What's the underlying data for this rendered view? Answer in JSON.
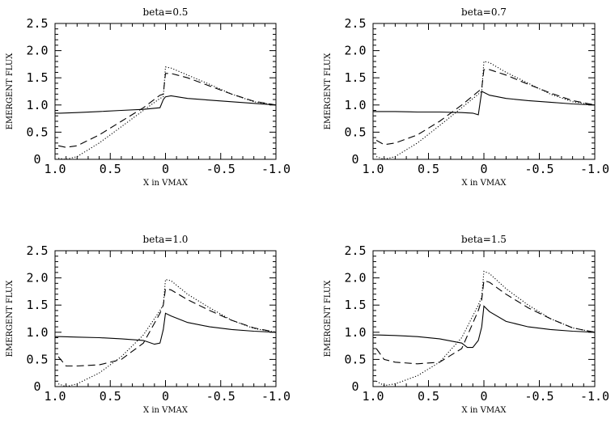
{
  "chart_data": [
    {
      "type": "line",
      "title": "beta=0.5",
      "xlabel": "X in VMAX",
      "ylabel": "EMERGENT FLUX",
      "xlim": [
        1.0,
        -1.0
      ],
      "ylim": [
        0,
        2.5
      ],
      "xticks": [
        "1.0",
        "0.5",
        "0",
        "-0.5",
        "-1.0"
      ],
      "yticks": [
        "0",
        "0.5",
        "1.0",
        "1.5",
        "2.0",
        "2.5"
      ],
      "grid": false,
      "series": [
        {
          "style": "solid",
          "x": [
            1.0,
            0.95,
            0.8,
            0.6,
            0.4,
            0.2,
            0.05,
            0.02,
            0.0,
            -0.05,
            -0.2,
            -0.4,
            -0.6,
            -0.8,
            -1.0
          ],
          "y": [
            0.85,
            0.85,
            0.86,
            0.88,
            0.9,
            0.92,
            0.95,
            1.1,
            1.15,
            1.17,
            1.12,
            1.09,
            1.06,
            1.03,
            1.0
          ]
        },
        {
          "style": "dashed",
          "x": [
            0.97,
            0.9,
            0.8,
            0.6,
            0.4,
            0.2,
            0.05,
            0.02,
            0.0,
            -0.05,
            -0.2,
            -0.4,
            -0.6,
            -0.8,
            -1.0
          ],
          "y": [
            0.25,
            0.22,
            0.25,
            0.45,
            0.7,
            0.95,
            1.18,
            1.2,
            1.58,
            1.58,
            1.5,
            1.35,
            1.2,
            1.07,
            1.0
          ]
        },
        {
          "style": "dotted",
          "x": [
            0.97,
            0.9,
            0.8,
            0.6,
            0.4,
            0.2,
            0.05,
            0.02,
            0.0,
            -0.05,
            -0.2,
            -0.4,
            -0.6,
            -0.8,
            -1.0
          ],
          "y": [
            0.02,
            0.0,
            0.05,
            0.3,
            0.6,
            0.9,
            1.12,
            1.15,
            1.7,
            1.68,
            1.55,
            1.38,
            1.2,
            1.06,
            1.0
          ]
        }
      ]
    },
    {
      "type": "line",
      "title": "beta=0.7",
      "xlabel": "X in VMAX",
      "ylabel": "EMERGENT FLUX",
      "xlim": [
        1.0,
        -1.0
      ],
      "ylim": [
        0,
        2.5
      ],
      "xticks": [
        "1.0",
        "0.5",
        "0",
        "-0.5",
        "-1.0"
      ],
      "yticks": [
        "0",
        "0.5",
        "1.0",
        "1.5",
        "2.0",
        "2.5"
      ],
      "grid": false,
      "series": [
        {
          "style": "solid",
          "x": [
            1.0,
            0.95,
            0.8,
            0.6,
            0.4,
            0.2,
            0.1,
            0.05,
            0.02,
            0.0,
            -0.05,
            -0.2,
            -0.4,
            -0.6,
            -0.8,
            -1.0
          ],
          "y": [
            0.88,
            0.88,
            0.88,
            0.87,
            0.87,
            0.86,
            0.85,
            0.82,
            1.25,
            1.23,
            1.18,
            1.12,
            1.08,
            1.05,
            1.02,
            1.0
          ]
        },
        {
          "style": "dashed",
          "x": [
            0.97,
            0.9,
            0.8,
            0.6,
            0.4,
            0.2,
            0.05,
            0.02,
            0.0,
            -0.05,
            -0.2,
            -0.4,
            -0.6,
            -0.8,
            -1.0
          ],
          "y": [
            0.35,
            0.27,
            0.3,
            0.45,
            0.7,
            1.0,
            1.25,
            1.3,
            1.65,
            1.65,
            1.55,
            1.38,
            1.22,
            1.08,
            1.0
          ]
        },
        {
          "style": "dotted",
          "x": [
            0.97,
            0.9,
            0.8,
            0.6,
            0.4,
            0.2,
            0.05,
            0.02,
            0.0,
            -0.05,
            -0.2,
            -0.4,
            -0.6,
            -0.8,
            -1.0
          ],
          "y": [
            0.05,
            0.0,
            0.05,
            0.3,
            0.62,
            0.95,
            1.2,
            1.25,
            1.8,
            1.78,
            1.6,
            1.4,
            1.2,
            1.06,
            1.0
          ]
        }
      ]
    },
    {
      "type": "line",
      "title": "beta=1.0",
      "xlabel": "X in VMAX",
      "ylabel": "EMERGENT FLUX",
      "xlim": [
        1.0,
        -1.0
      ],
      "ylim": [
        0,
        2.5
      ],
      "xticks": [
        "1.0",
        "0.5",
        "0",
        "-0.5",
        "-1.0"
      ],
      "yticks": [
        "0",
        "0.5",
        "1.0",
        "1.5",
        "2.0",
        "2.5"
      ],
      "grid": false,
      "series": [
        {
          "style": "solid",
          "x": [
            1.0,
            0.95,
            0.8,
            0.6,
            0.4,
            0.2,
            0.1,
            0.05,
            0.02,
            0.0,
            -0.05,
            -0.2,
            -0.4,
            -0.6,
            -0.8,
            -1.0
          ],
          "y": [
            0.92,
            0.92,
            0.91,
            0.9,
            0.88,
            0.85,
            0.78,
            0.8,
            1.05,
            1.35,
            1.3,
            1.18,
            1.1,
            1.05,
            1.02,
            1.0
          ]
        },
        {
          "style": "dashed",
          "x": [
            0.97,
            0.9,
            0.8,
            0.6,
            0.4,
            0.2,
            0.05,
            0.02,
            0.0,
            -0.05,
            -0.2,
            -0.4,
            -0.6,
            -0.8,
            -1.0
          ],
          "y": [
            0.55,
            0.38,
            0.38,
            0.4,
            0.5,
            0.8,
            1.35,
            1.5,
            1.8,
            1.78,
            1.6,
            1.4,
            1.22,
            1.08,
            1.0
          ]
        },
        {
          "style": "dotted",
          "x": [
            0.97,
            0.9,
            0.8,
            0.6,
            0.4,
            0.2,
            0.05,
            0.02,
            0.0,
            -0.05,
            -0.2,
            -0.4,
            -0.6,
            -0.8,
            -1.0
          ],
          "y": [
            0.05,
            0.0,
            0.05,
            0.25,
            0.55,
            0.95,
            1.4,
            1.5,
            1.97,
            1.95,
            1.7,
            1.45,
            1.22,
            1.07,
            1.0
          ]
        }
      ]
    },
    {
      "type": "line",
      "title": "beta=1.5",
      "xlabel": "X in VMAX",
      "ylabel": "EMERGENT FLUX",
      "xlim": [
        1.0,
        -1.0
      ],
      "ylim": [
        0,
        2.5
      ],
      "xticks": [
        "1.0",
        "0.5",
        "0",
        "-0.5",
        "-1.0"
      ],
      "yticks": [
        "0",
        "0.5",
        "1.0",
        "1.5",
        "2.0",
        "2.5"
      ],
      "grid": false,
      "series": [
        {
          "style": "solid",
          "x": [
            1.0,
            0.95,
            0.8,
            0.6,
            0.4,
            0.2,
            0.15,
            0.1,
            0.05,
            0.02,
            0.0,
            -0.05,
            -0.2,
            -0.4,
            -0.6,
            -0.8,
            -1.0
          ],
          "y": [
            0.95,
            0.95,
            0.94,
            0.92,
            0.88,
            0.8,
            0.72,
            0.72,
            0.85,
            1.1,
            1.48,
            1.38,
            1.2,
            1.1,
            1.05,
            1.02,
            1.0
          ]
        },
        {
          "style": "dashed",
          "x": [
            0.97,
            0.9,
            0.8,
            0.6,
            0.4,
            0.2,
            0.05,
            0.02,
            0.0,
            -0.05,
            -0.2,
            -0.4,
            -0.6,
            -0.8,
            -1.0
          ],
          "y": [
            0.7,
            0.5,
            0.45,
            0.42,
            0.45,
            0.7,
            1.4,
            1.6,
            1.95,
            1.92,
            1.7,
            1.45,
            1.25,
            1.08,
            1.0
          ]
        },
        {
          "style": "dotted",
          "x": [
            0.97,
            0.9,
            0.8,
            0.6,
            0.4,
            0.2,
            0.05,
            0.02,
            0.0,
            -0.05,
            -0.2,
            -0.4,
            -0.6,
            -0.8,
            -1.0
          ],
          "y": [
            0.1,
            0.02,
            0.05,
            0.2,
            0.45,
            0.9,
            1.5,
            1.65,
            2.12,
            2.08,
            1.8,
            1.5,
            1.25,
            1.08,
            1.0
          ]
        }
      ]
    }
  ]
}
